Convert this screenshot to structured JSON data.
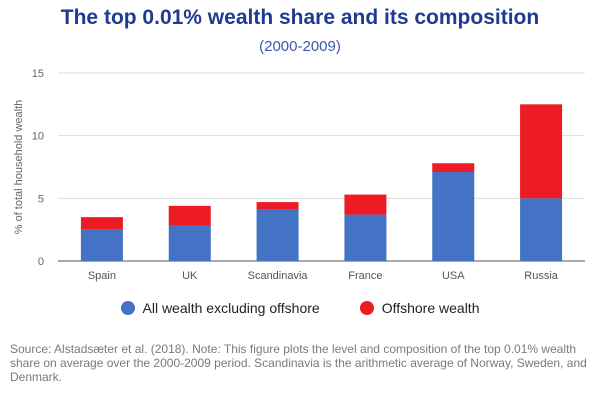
{
  "chart_data": {
    "type": "bar",
    "stacked": true,
    "title": "The top 0.01% wealth share and its composition",
    "subtitle": "(2000-2009)",
    "xlabel": "",
    "ylabel": "% of total household wealth",
    "ylim": [
      0,
      15
    ],
    "yticks": [
      0,
      5,
      10,
      15
    ],
    "grid": true,
    "legend_position": "bottom",
    "categories": [
      "Spain",
      "UK",
      "Scandinavia",
      "France",
      "USA",
      "Russia"
    ],
    "series": [
      {
        "name": "All wealth excluding offshore",
        "color": "#4472c4",
        "values": [
          2.5,
          2.8,
          4.1,
          3.7,
          7.1,
          5.0
        ]
      },
      {
        "name": "Offshore wealth",
        "color": "#ed1c24",
        "values": [
          1.0,
          1.6,
          0.6,
          1.6,
          0.7,
          7.5
        ]
      }
    ]
  },
  "footnote": "Source: Alstadsæter et al. (2018). Note: This figure plots the level and composition of the top 0.01% wealth share on average over the 2000-2009 period. Scandinavia is the arithmetic average of Norway, Sweden, and Denmark."
}
